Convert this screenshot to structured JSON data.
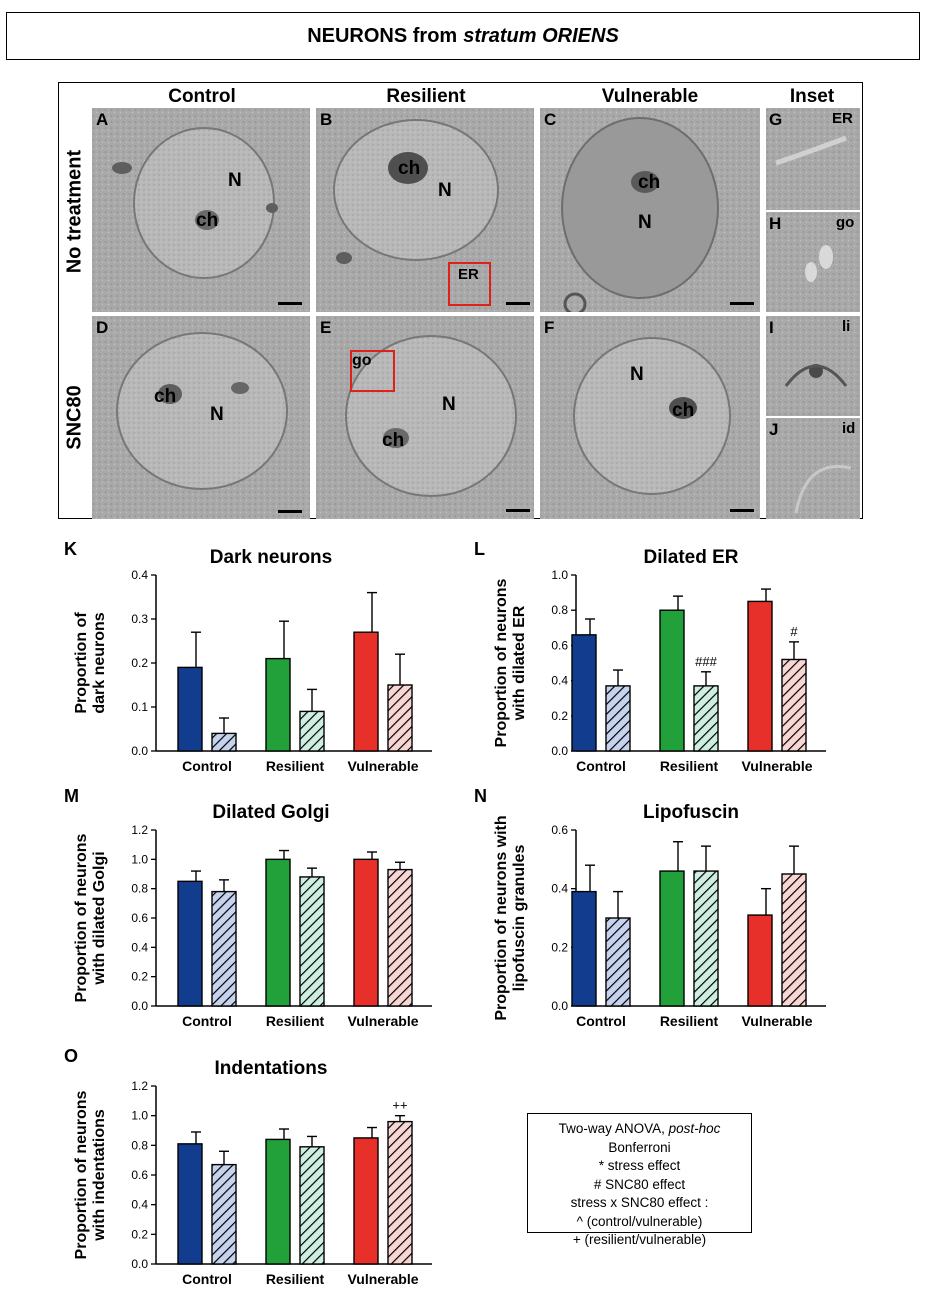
{
  "figure": {
    "title_main": "NEURONS from",
    "title_italic": "stratum ORIENS",
    "columns": [
      "Control",
      "Resilient",
      "Vulnerable",
      "Inset"
    ],
    "rows": [
      "No treatment",
      "SNC80"
    ],
    "panels": [
      {
        "letter": "A",
        "marks": [
          "N",
          "ch"
        ]
      },
      {
        "letter": "B",
        "marks": [
          "ch",
          "N",
          "ER"
        ]
      },
      {
        "letter": "C",
        "marks": [
          "ch",
          "N"
        ]
      },
      {
        "letter": "D",
        "marks": [
          "ch",
          "N"
        ]
      },
      {
        "letter": "E",
        "marks": [
          "go",
          "N",
          "ch"
        ]
      },
      {
        "letter": "F",
        "marks": [
          "N",
          "ch"
        ]
      },
      {
        "letter": "G",
        "marks": [
          "ER"
        ]
      },
      {
        "letter": "H",
        "marks": [
          "go"
        ]
      },
      {
        "letter": "I",
        "marks": [
          "li"
        ]
      },
      {
        "letter": "J",
        "marks": [
          "id"
        ]
      }
    ],
    "colors": {
      "control": "#123c8e",
      "resilient": "#22a03a",
      "vulnerable": "#e8302a",
      "control_hatch_bg": "#c6d3ee",
      "resilient_hatch_bg": "#cdeee0",
      "vulnerable_hatch_bg": "#f7d6d4",
      "box_highlight": "#e0201b"
    }
  },
  "legend": {
    "line1_pre": "Two-way ANOVA, ",
    "line1_italic": "post-hoc",
    "line1_post": " Bonferroni",
    "line2": "* stress effect",
    "line3": "# SNC80 effect",
    "line4": "stress x SNC80 effect :",
    "line5": "^ (control/vulnerable)",
    "line6": "+ (resilient/vulnerable)"
  },
  "chart_data": [
    {
      "panel": "K",
      "type": "bar",
      "title": "Dark neurons",
      "ylabel": [
        "Proportion of",
        "dark neurons"
      ],
      "categories": [
        "Control",
        "Resilient",
        "Vulnerable"
      ],
      "ylim": [
        0,
        0.4
      ],
      "yticks": [
        "0.0",
        "0.1",
        "0.2",
        "0.3",
        "0.4"
      ],
      "series": [
        {
          "name": "",
          "values": [
            0.19,
            0.21,
            0.27
          ],
          "errors": [
            0.08,
            0.085,
            0.09
          ]
        },
        {
          "name": "",
          "values": [
            0.04,
            0.09,
            0.15
          ],
          "errors": [
            0.035,
            0.05,
            0.07
          ]
        }
      ],
      "annotations": []
    },
    {
      "panel": "L",
      "type": "bar",
      "title": "Dilated ER",
      "ylabel": [
        "Proportion of neurons",
        "with dilated ER"
      ],
      "categories": [
        "Control",
        "Resilient",
        "Vulnerable"
      ],
      "ylim": [
        0,
        1.0
      ],
      "yticks": [
        "0.0",
        "0.2",
        "0.4",
        "0.6",
        "0.8",
        "1.0"
      ],
      "series": [
        {
          "name": "",
          "values": [
            0.66,
            0.8,
            0.85
          ],
          "errors": [
            0.09,
            0.08,
            0.07
          ]
        },
        {
          "name": "",
          "values": [
            0.37,
            0.37,
            0.52
          ],
          "errors": [
            0.09,
            0.08,
            0.1
          ]
        }
      ],
      "annotations": [
        {
          "group": 1,
          "series": 1,
          "text": "###"
        },
        {
          "group": 2,
          "series": 1,
          "text": "#"
        }
      ]
    },
    {
      "panel": "M",
      "type": "bar",
      "title": "Dilated Golgi",
      "ylabel": [
        "Proportion of neurons",
        "with dilated Golgi"
      ],
      "categories": [
        "Control",
        "Resilient",
        "Vulnerable"
      ],
      "ylim": [
        0,
        1.2
      ],
      "yticks": [
        "0.0",
        "0.2",
        "0.4",
        "0.6",
        "0.8",
        "1.0",
        "1.2"
      ],
      "series": [
        {
          "name": "",
          "values": [
            0.85,
            1.0,
            1.0
          ],
          "errors": [
            0.07,
            0.06,
            0.05
          ]
        },
        {
          "name": "",
          "values": [
            0.78,
            0.88,
            0.93
          ],
          "errors": [
            0.08,
            0.06,
            0.05
          ]
        }
      ],
      "annotations": []
    },
    {
      "panel": "N",
      "type": "bar",
      "title": "Lipofuscin",
      "ylabel": [
        "Proportion of neurons with",
        "lipofuscin granules"
      ],
      "categories": [
        "Control",
        "Resilient",
        "Vulnerable"
      ],
      "ylim": [
        0,
        0.6
      ],
      "yticks": [
        "0.0",
        "0.2",
        "0.4",
        "0.6"
      ],
      "series": [
        {
          "name": "",
          "values": [
            0.39,
            0.46,
            0.31
          ],
          "errors": [
            0.09,
            0.1,
            0.09
          ]
        },
        {
          "name": "",
          "values": [
            0.3,
            0.46,
            0.45
          ],
          "errors": [
            0.09,
            0.085,
            0.095
          ]
        }
      ],
      "annotations": []
    },
    {
      "panel": "O",
      "type": "bar",
      "title": "Indentations",
      "ylabel": [
        "Proportion of neurons",
        "with indentations"
      ],
      "categories": [
        "Control",
        "Resilient",
        "Vulnerable"
      ],
      "ylim": [
        0,
        1.2
      ],
      "yticks": [
        "0.0",
        "0.2",
        "0.4",
        "0.6",
        "0.8",
        "1.0",
        "1.2"
      ],
      "series": [
        {
          "name": "",
          "values": [
            0.81,
            0.84,
            0.85
          ],
          "errors": [
            0.08,
            0.07,
            0.07
          ]
        },
        {
          "name": "",
          "values": [
            0.67,
            0.79,
            0.96
          ],
          "errors": [
            0.09,
            0.07,
            0.04
          ]
        }
      ],
      "annotations": [
        {
          "group": 2,
          "series": 1,
          "text": "++"
        }
      ]
    }
  ]
}
